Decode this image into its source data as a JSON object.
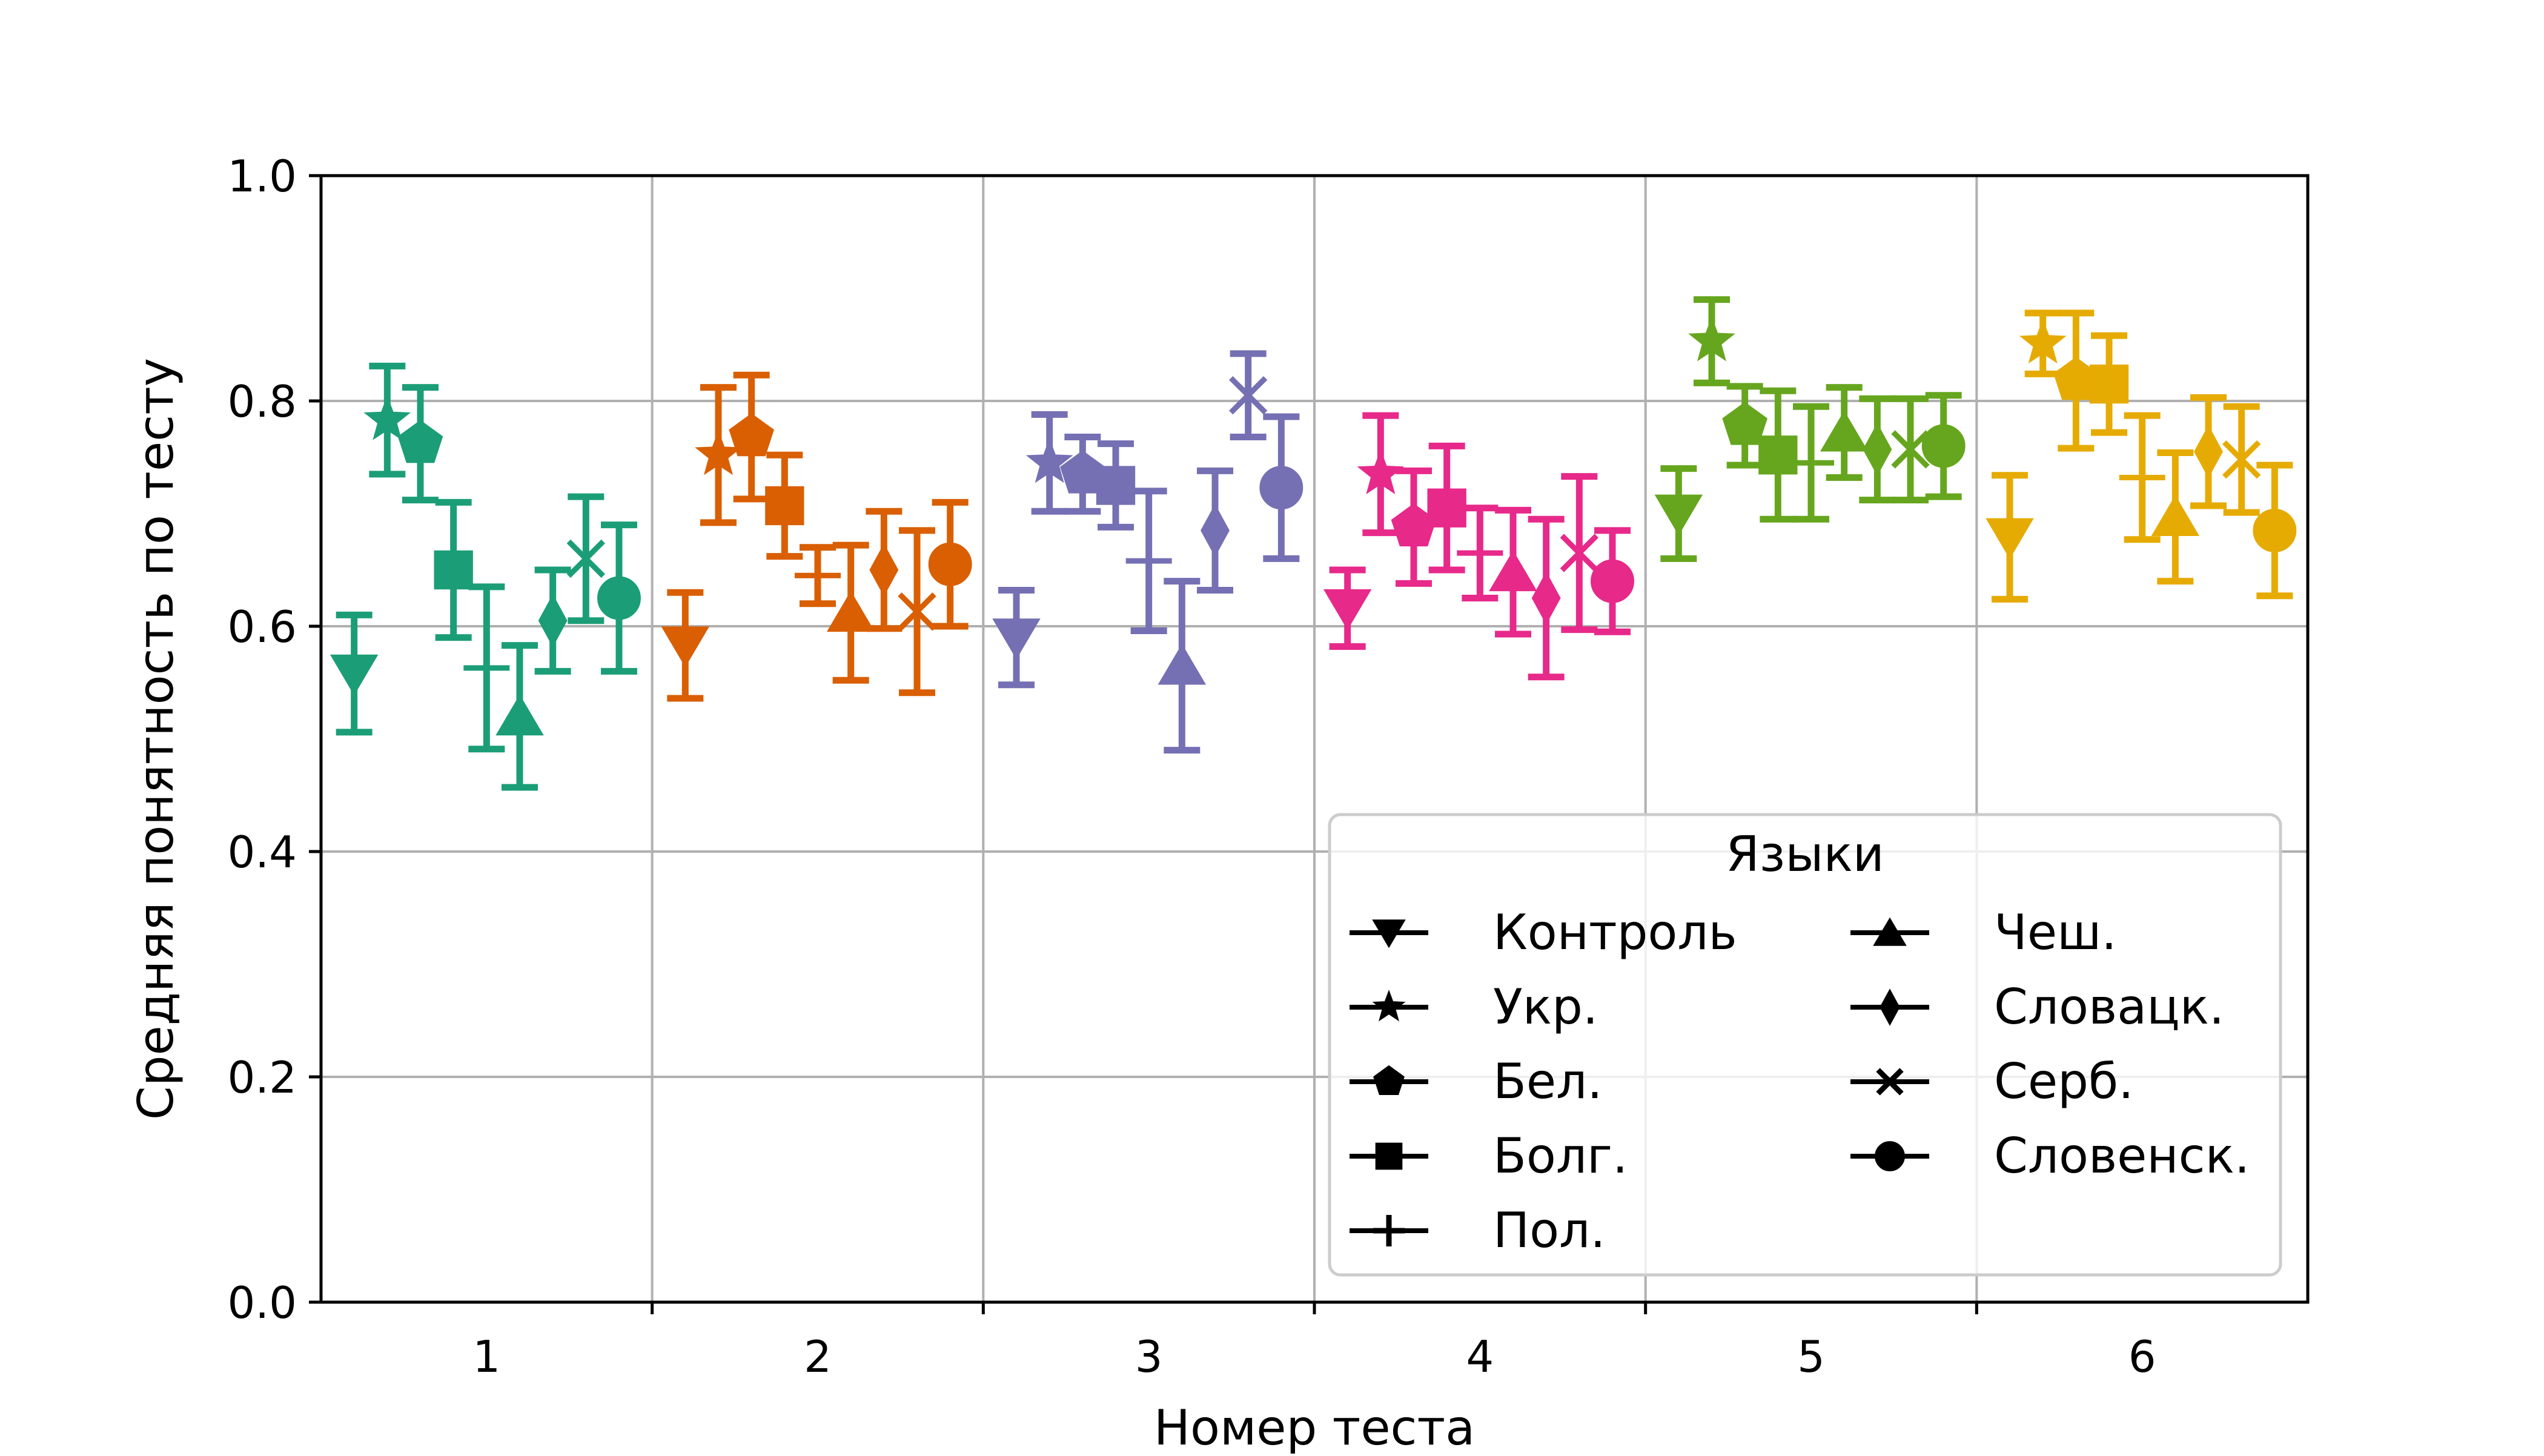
{
  "chart_data": {
    "type": "scatter",
    "title": "",
    "xlabel": "Номер теста",
    "ylabel": "Средняя понятность по тесту",
    "xlim": [
      0.5,
      6.5
    ],
    "ylim": [
      0.0,
      1.0
    ],
    "x_ticks": [
      "1",
      "2",
      "3",
      "4",
      "5",
      "6"
    ],
    "y_ticks": [
      "0.0",
      "0.2",
      "0.4",
      "0.6",
      "0.8",
      "1.0"
    ],
    "grid": true,
    "error_bars": true,
    "legend": {
      "title": "Языки",
      "placement": "lower-right",
      "columns": 2,
      "entries_col1": [
        "Контроль",
        "Укр.",
        "Бел.",
        "Болг.",
        "Пол."
      ],
      "entries_col2": [
        "Чеш.",
        "Словацк.",
        "Серб.",
        "Словенск."
      ]
    },
    "test_colors": [
      "#1b9e77",
      "#d95f02",
      "#7570b3",
      "#e7298a",
      "#66a61e",
      "#e6ab02"
    ],
    "offsets": [
      -0.4,
      -0.3,
      -0.2,
      -0.1,
      0.0,
      0.1,
      0.2,
      0.3,
      0.4
    ],
    "series": [
      {
        "name": "Контроль",
        "marker": "triangle-down",
        "values": [
          0.558,
          0.583,
          0.59,
          0.616,
          0.7,
          0.679
        ],
        "errors": [
          0.052,
          0.047,
          0.042,
          0.034,
          0.04,
          0.055
        ]
      },
      {
        "name": "Укр.",
        "marker": "star",
        "values": [
          0.783,
          0.752,
          0.745,
          0.735,
          0.853,
          0.851
        ],
        "errors": [
          0.048,
          0.06,
          0.043,
          0.052,
          0.037,
          0.027
        ]
      },
      {
        "name": "Бел.",
        "marker": "pentagon",
        "values": [
          0.762,
          0.768,
          0.735,
          0.688,
          0.778,
          0.818
        ],
        "errors": [
          0.05,
          0.055,
          0.033,
          0.05,
          0.035,
          0.06
        ]
      },
      {
        "name": "Болг.",
        "marker": "square",
        "values": [
          0.65,
          0.707,
          0.725,
          0.705,
          0.752,
          0.815
        ],
        "errors": [
          0.06,
          0.045,
          0.037,
          0.055,
          0.057,
          0.043
        ]
      },
      {
        "name": "Пол.",
        "marker": "plus",
        "values": [
          0.563,
          0.645,
          0.658,
          0.665,
          0.745,
          0.732
        ],
        "errors": [
          0.072,
          0.025,
          0.062,
          0.04,
          0.05,
          0.055
        ]
      },
      {
        "name": "Чеш.",
        "marker": "triangle-up",
        "values": [
          0.52,
          0.612,
          0.565,
          0.648,
          0.772,
          0.697
        ],
        "errors": [
          0.063,
          0.06,
          0.075,
          0.055,
          0.04,
          0.057
        ]
      },
      {
        "name": "Словацк.",
        "marker": "diamond",
        "values": [
          0.605,
          0.65,
          0.685,
          0.625,
          0.757,
          0.755
        ],
        "errors": [
          0.045,
          0.052,
          0.053,
          0.07,
          0.045,
          0.048
        ]
      },
      {
        "name": "Серб.",
        "marker": "x",
        "values": [
          0.66,
          0.613,
          0.805,
          0.665,
          0.757,
          0.748
        ],
        "errors": [
          0.055,
          0.072,
          0.037,
          0.068,
          0.045,
          0.047
        ]
      },
      {
        "name": "Словенск.",
        "marker": "circle",
        "values": [
          0.625,
          0.655,
          0.723,
          0.64,
          0.76,
          0.685
        ],
        "errors": [
          0.065,
          0.055,
          0.063,
          0.045,
          0.045,
          0.058
        ]
      }
    ]
  }
}
